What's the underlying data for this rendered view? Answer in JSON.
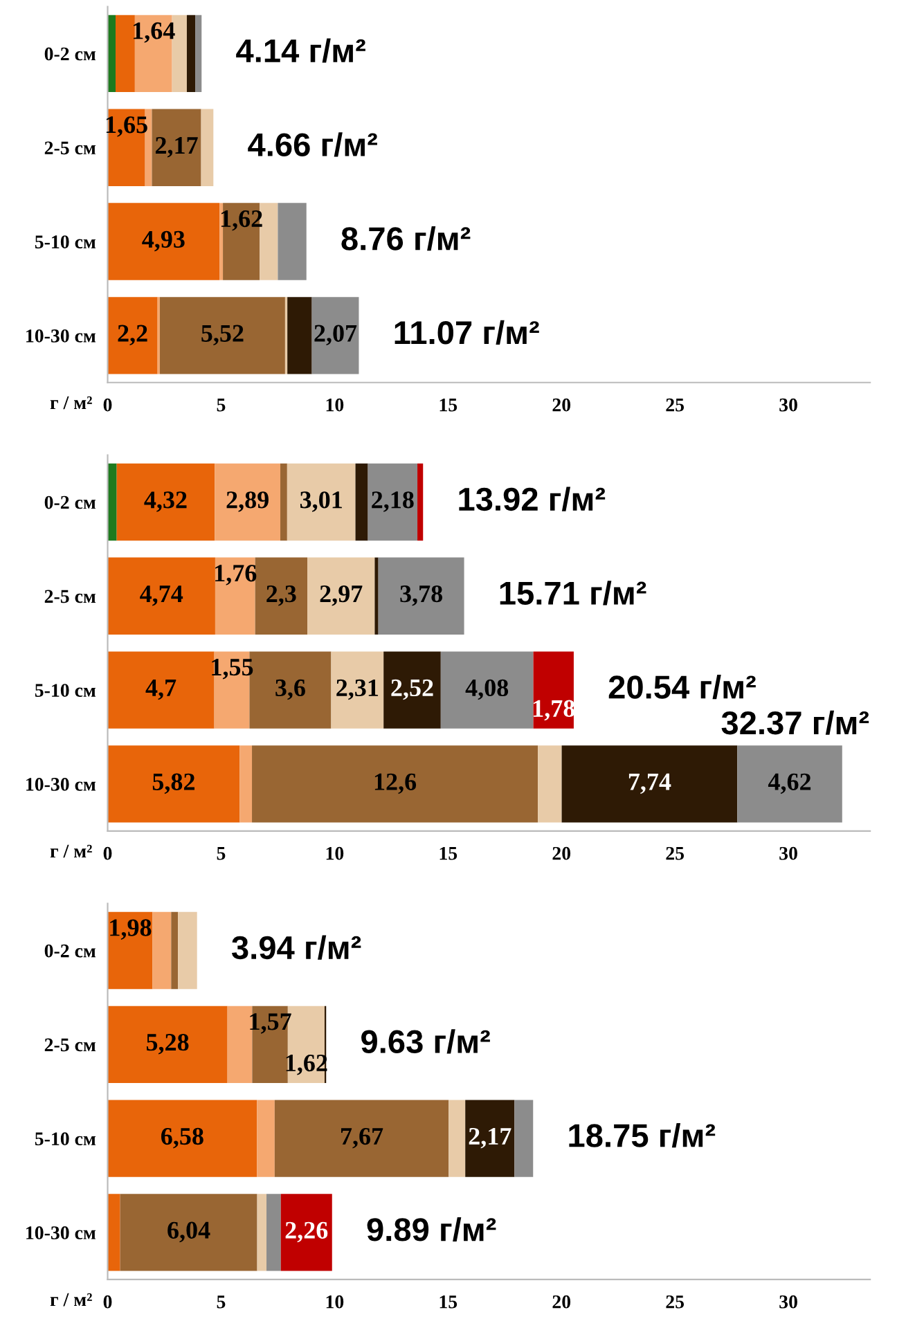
{
  "chart_data": [
    {
      "type": "bar",
      "orientation": "horizontal",
      "stacked": true,
      "xlabel": "г / м²",
      "categories": [
        "0-2 см",
        "2-5 см",
        "5-10 см",
        "10-30 см"
      ],
      "xlim": [
        0,
        33.6
      ],
      "xticks": [
        0,
        5,
        10,
        15,
        20,
        25,
        30
      ],
      "grid": false,
      "legend": false,
      "series": [
        {
          "color": "#1e7a1e",
          "values": [
            0.35,
            0,
            0,
            0
          ],
          "value_labels": [
            null,
            null,
            null,
            null
          ]
        },
        {
          "color": "#e8650a",
          "values": [
            0.85,
            1.65,
            4.93,
            2.2
          ],
          "value_labels": [
            null,
            "1,65",
            "4,93",
            "2,2"
          ]
        },
        {
          "color": "#f5a870",
          "values": [
            1.64,
            0.3,
            0.15,
            0.1
          ],
          "value_labels": [
            "1,64",
            null,
            null,
            null
          ]
        },
        {
          "color": "#996633",
          "values": [
            0,
            2.17,
            1.62,
            5.52
          ],
          "value_labels": [
            null,
            "2,17",
            "1,62",
            "5,52"
          ]
        },
        {
          "color": "#e8cba8",
          "values": [
            0.65,
            0.54,
            0.8,
            0.1
          ],
          "value_labels": [
            null,
            null,
            null,
            null
          ]
        },
        {
          "color": "#2e1a05",
          "values": [
            0.37,
            0,
            0,
            1.08
          ],
          "value_labels": [
            null,
            null,
            null,
            null
          ]
        },
        {
          "color": "#8c8c8c",
          "values": [
            0.28,
            0,
            1.26,
            2.07
          ],
          "value_labels": [
            null,
            null,
            null,
            "2,07"
          ]
        },
        {
          "color": "#c00000",
          "values": [
            0,
            0,
            0,
            0
          ],
          "value_labels": [
            null,
            null,
            null,
            null
          ]
        }
      ],
      "totals": [
        "4.14 г/м²",
        "4.66 г/м²",
        "8.76 г/м²",
        "11.07 г/м²"
      ]
    },
    {
      "type": "bar",
      "orientation": "horizontal",
      "stacked": true,
      "xlabel": "г / м²",
      "categories": [
        "0-2 см",
        "2-5 см",
        "5-10 см",
        "10-30 см"
      ],
      "xlim": [
        0,
        33.6
      ],
      "xticks": [
        0,
        5,
        10,
        15,
        20,
        25,
        30
      ],
      "grid": false,
      "legend": false,
      "series": [
        {
          "color": "#1e7a1e",
          "values": [
            0.4,
            0,
            0,
            0
          ],
          "value_labels": [
            null,
            null,
            null,
            null
          ]
        },
        {
          "color": "#e8650a",
          "values": [
            4.32,
            4.74,
            4.7,
            5.82
          ],
          "value_labels": [
            "4,32",
            "4,74",
            "4,7",
            "5,82"
          ]
        },
        {
          "color": "#f5a870",
          "values": [
            2.89,
            1.76,
            1.55,
            0.54
          ],
          "value_labels": [
            "2,89",
            "1,76",
            "1,55",
            null
          ]
        },
        {
          "color": "#996633",
          "values": [
            0.3,
            2.3,
            3.6,
            12.6
          ],
          "value_labels": [
            null,
            "2,3",
            "3,6",
            "12,6"
          ]
        },
        {
          "color": "#e8cba8",
          "values": [
            3.01,
            2.97,
            2.31,
            1.05
          ],
          "value_labels": [
            "3,01",
            "2,97",
            "2,31",
            null
          ]
        },
        {
          "color": "#2e1a05",
          "values": [
            0.55,
            0.16,
            2.52,
            7.74
          ],
          "value_labels": [
            null,
            null,
            "2,52",
            "7,74"
          ]
        },
        {
          "color": "#8c8c8c",
          "values": [
            2.18,
            3.78,
            4.08,
            4.62
          ],
          "value_labels": [
            "2,18",
            "3,78",
            "4,08",
            "4,62"
          ]
        },
        {
          "color": "#c00000",
          "values": [
            0.25,
            0,
            1.78,
            0
          ],
          "value_labels": [
            null,
            null,
            "1,78",
            null
          ]
        }
      ],
      "totals": [
        "13.92 г/м²",
        "15.71 г/м²",
        "20.54 г/м²",
        "32.37 г/м²"
      ]
    },
    {
      "type": "bar",
      "orientation": "horizontal",
      "stacked": true,
      "xlabel": "г / м²",
      "categories": [
        "0-2 см",
        "2-5 см",
        "5-10 см",
        "10-30 см"
      ],
      "xlim": [
        0,
        33.6
      ],
      "xticks": [
        0,
        5,
        10,
        15,
        20,
        25,
        30
      ],
      "grid": false,
      "legend": false,
      "series": [
        {
          "color": "#1e7a1e",
          "values": [
            0,
            0,
            0,
            0
          ],
          "value_labels": [
            null,
            null,
            null,
            null
          ]
        },
        {
          "color": "#e8650a",
          "values": [
            1.98,
            5.28,
            6.58,
            0.55
          ],
          "value_labels": [
            "1,98",
            "5,28",
            "6,58",
            null
          ]
        },
        {
          "color": "#f5a870",
          "values": [
            0.82,
            1.09,
            0.78,
            0
          ],
          "value_labels": [
            null,
            null,
            null,
            null
          ]
        },
        {
          "color": "#996633",
          "values": [
            0.3,
            1.57,
            7.67,
            6.04
          ],
          "value_labels": [
            null,
            "1,57",
            "7,67",
            "6,04"
          ]
        },
        {
          "color": "#e8cba8",
          "values": [
            0.84,
            1.62,
            0.73,
            0.41
          ],
          "value_labels": [
            null,
            "1,62",
            null,
            null
          ]
        },
        {
          "color": "#2e1a05",
          "values": [
            0,
            0.07,
            2.17,
            0
          ],
          "value_labels": [
            null,
            null,
            "2,17",
            null
          ]
        },
        {
          "color": "#8c8c8c",
          "values": [
            0,
            0,
            0.82,
            0.63
          ],
          "value_labels": [
            null,
            null,
            null,
            null
          ]
        },
        {
          "color": "#c00000",
          "values": [
            0,
            0,
            0,
            2.26
          ],
          "value_labels": [
            null,
            null,
            null,
            "2,26"
          ]
        }
      ],
      "totals": [
        "3.94 г/м²",
        "9.63 г/м²",
        "18.75 г/м²",
        "9.89 г/м²"
      ]
    }
  ]
}
